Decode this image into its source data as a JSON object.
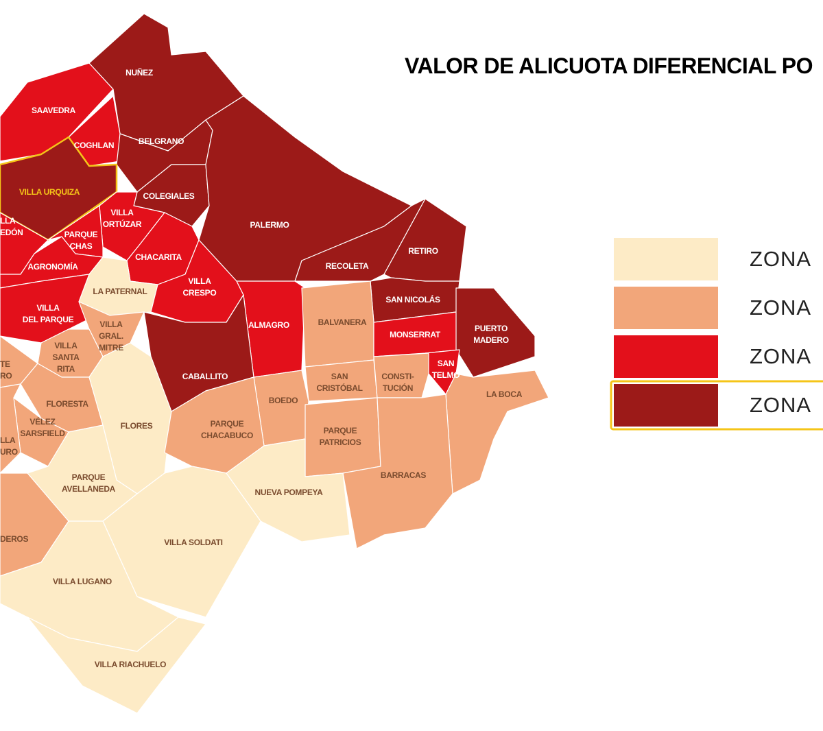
{
  "title": "VALOR DE ALICUOTA DIFERENCIAL PO",
  "legend": [
    {
      "label": "ZONA",
      "color": "#fdebc6"
    },
    {
      "label": "ZONA",
      "color": "#f2a67a"
    },
    {
      "label": "ZONA",
      "color": "#e3101b"
    },
    {
      "label": "ZONA",
      "color": "#9c1a18",
      "outline": "#f5c518"
    }
  ],
  "neighborhoods": [
    {
      "label": [
        "SAAVEDRA"
      ],
      "color": "#e3101b"
    },
    {
      "label": [
        "NUÑEZ"
      ],
      "color": "#9c1a18"
    },
    {
      "label": [
        "COGHLAN"
      ],
      "color": "#e3101b"
    },
    {
      "label": [
        "BELGRANO"
      ],
      "color": "#9c1a18"
    },
    {
      "label": [
        "VILLA URQUIZA"
      ],
      "color": "#9c1a18",
      "outline": "#f5c518"
    },
    {
      "label": [
        "COLEGIALES"
      ],
      "color": "#9c1a18"
    },
    {
      "label": [
        "PALERMO"
      ],
      "color": "#9c1a18"
    },
    {
      "label": [
        "VILLA",
        "ORTÚZAR"
      ],
      "color": "#e3101b"
    },
    {
      "label": [
        "PARQUE",
        "CHAS"
      ],
      "color": "#e3101b"
    },
    {
      "label": [
        "LLA",
        "EDÓN"
      ],
      "color": "#e3101b"
    },
    {
      "label": [
        "AGRONOMÍA"
      ],
      "color": "#e3101b"
    },
    {
      "label": [
        "CHACARITA"
      ],
      "color": "#e3101b"
    },
    {
      "label": [
        "LA PATERNAL"
      ],
      "color": "#fdebc6"
    },
    {
      "label": [
        "VILLA",
        "CRESPO"
      ],
      "color": "#e3101b"
    },
    {
      "label": [
        "RECOLETA"
      ],
      "color": "#9c1a18"
    },
    {
      "label": [
        "RETIRO"
      ],
      "color": "#9c1a18"
    },
    {
      "label": [
        "SAN NICOLÁS"
      ],
      "color": "#9c1a18"
    },
    {
      "label": [
        "ALMAGRO"
      ],
      "color": "#e3101b"
    },
    {
      "label": [
        "BALVANERA"
      ],
      "color": "#f2a67a"
    },
    {
      "label": [
        "MONSERRAT"
      ],
      "color": "#e3101b"
    },
    {
      "label": [
        "PUERTO",
        "MADERO"
      ],
      "color": "#9c1a18"
    },
    {
      "label": [
        "SAN",
        "TELMO"
      ],
      "color": "#e3101b"
    },
    {
      "label": [
        "VILLA",
        "DEL PARQUE"
      ],
      "color": "#e3101b"
    },
    {
      "label": [
        "VILLA",
        "GRAL.",
        "MITRE"
      ],
      "color": "#f2a67a"
    },
    {
      "label": [
        "VILLA",
        "SANTA",
        "RITA"
      ],
      "color": "#f2a67a"
    },
    {
      "label": [
        "CABALLITO"
      ],
      "color": "#9c1a18"
    },
    {
      "label": [
        "SAN",
        "CRISTÓBAL"
      ],
      "color": "#f2a67a"
    },
    {
      "label": [
        "CONSTI-",
        "TUCIÓN"
      ],
      "color": "#f2a67a"
    },
    {
      "label": [
        "BOEDO"
      ],
      "color": "#f2a67a"
    },
    {
      "label": [
        "LA BOCA"
      ],
      "color": "#f2a67a"
    },
    {
      "label": [
        "TE",
        "RO"
      ],
      "color": "#f2a67a"
    },
    {
      "label": [
        "FLORESTA"
      ],
      "color": "#f2a67a"
    },
    {
      "label": [
        "VÉLEZ",
        "SARSFIELD"
      ],
      "color": "#f2a67a"
    },
    {
      "label": [
        "LLA",
        "URO"
      ],
      "color": "#f2a67a"
    },
    {
      "label": [
        "FLORES"
      ],
      "color": "#fdebc6"
    },
    {
      "label": [
        "PARQUE",
        "CHACABUCO"
      ],
      "color": "#f2a67a"
    },
    {
      "label": [
        "PARQUE",
        "PATRICIOS"
      ],
      "color": "#f2a67a"
    },
    {
      "label": [
        "BARRACAS"
      ],
      "color": "#f2a67a"
    },
    {
      "label": [
        "NUEVA POMPEYA"
      ],
      "color": "#fdebc6"
    },
    {
      "label": [
        "PARQUE",
        "AVELLANEDA"
      ],
      "color": "#fdebc6"
    },
    {
      "label": [
        "DEROS"
      ],
      "color": "#f2a67a"
    },
    {
      "label": [
        "VILLA SOLDATI"
      ],
      "color": "#fdebc6"
    },
    {
      "label": [
        "VILLA LUGANO"
      ],
      "color": "#fdebc6"
    },
    {
      "label": [
        "VILLA RIACHUELO"
      ],
      "color": "#fdebc6"
    }
  ]
}
